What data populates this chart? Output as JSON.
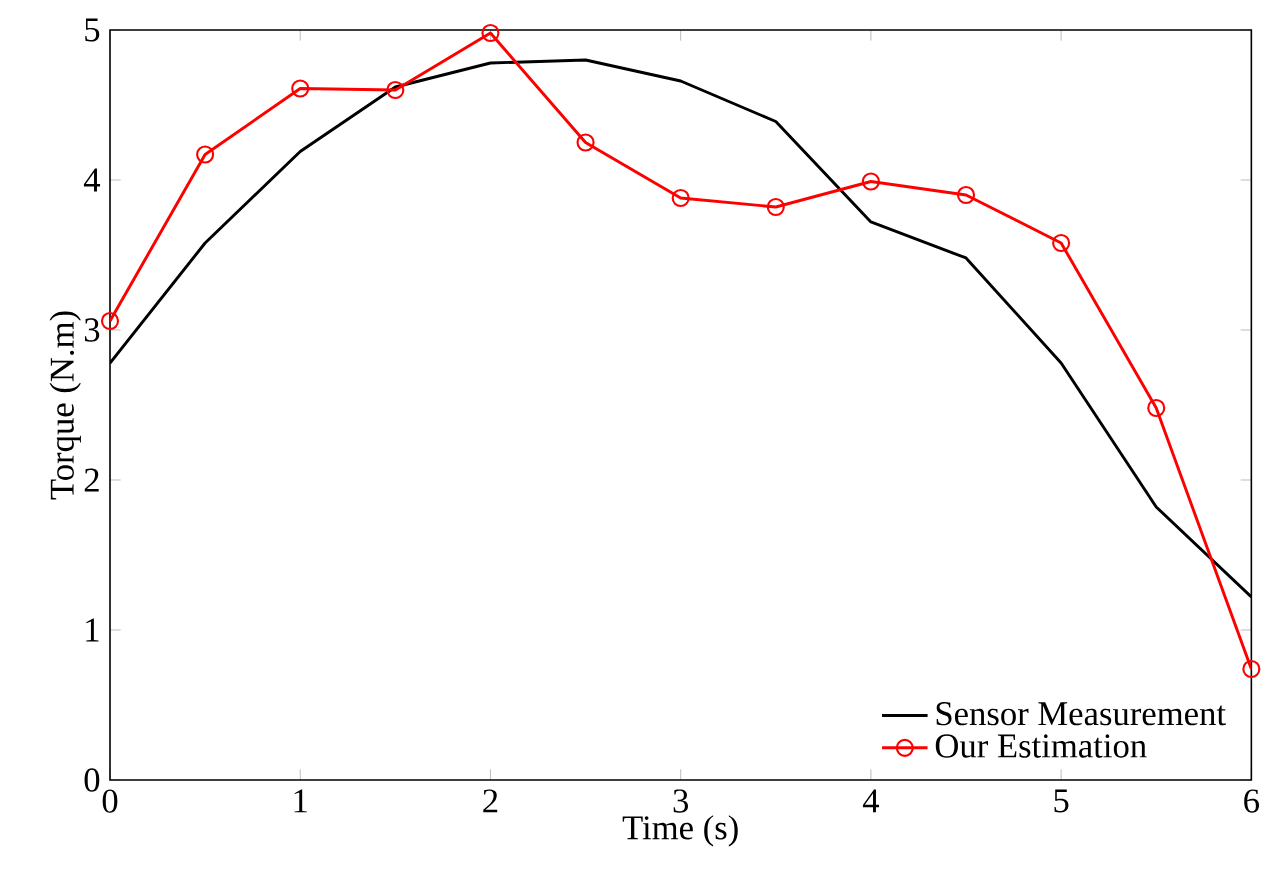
{
  "chart_data": {
    "type": "line",
    "xlabel": "Time (s)",
    "ylabel": "Torque (N.m)",
    "x": [
      0,
      0.5,
      1,
      1.5,
      2,
      2.5,
      3,
      3.5,
      4,
      4.5,
      5,
      5.5,
      6
    ],
    "series": [
      {
        "name": "Sensor Measurement",
        "color": "#000000",
        "values": [
          2.78,
          3.58,
          4.19,
          4.62,
          4.78,
          4.8,
          4.66,
          4.39,
          3.72,
          3.48,
          2.78,
          1.82,
          1.22
        ]
      },
      {
        "name": "Our Estimation",
        "color": "#ff0000",
        "marker": "circle",
        "values": [
          3.06,
          4.17,
          4.61,
          4.6,
          4.98,
          4.25,
          3.88,
          3.82,
          3.99,
          3.9,
          3.58,
          2.48,
          0.74
        ]
      }
    ],
    "xlim": [
      0,
      6
    ],
    "ylim": [
      0,
      5
    ],
    "xticks": [
      0,
      1,
      2,
      3,
      4,
      5,
      6
    ],
    "yticks": [
      0,
      1,
      2,
      3,
      4,
      5
    ],
    "legend": "bottom right",
    "grid": false
  }
}
